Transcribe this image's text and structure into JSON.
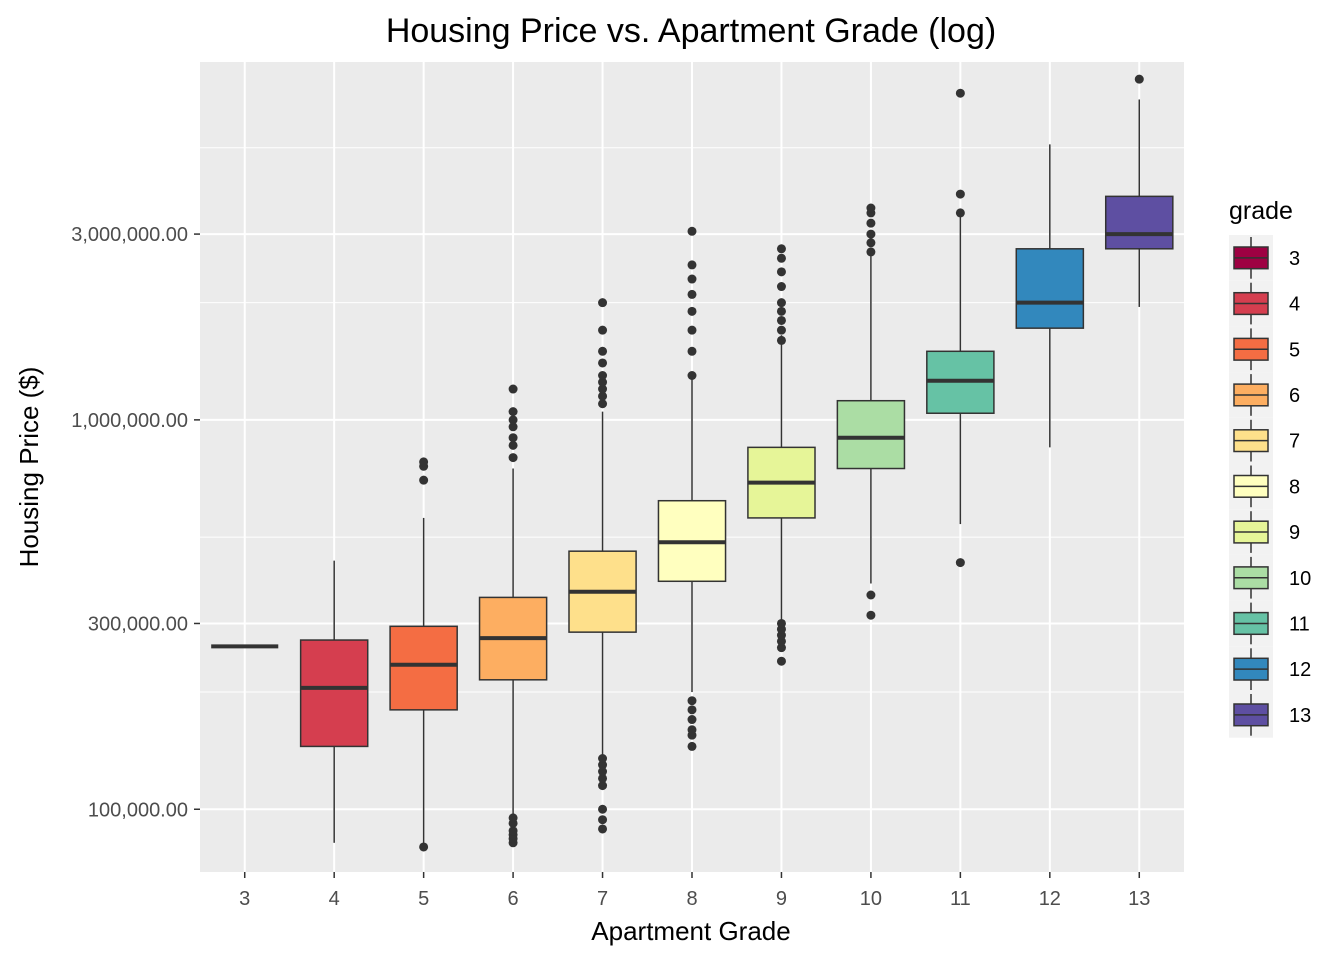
{
  "chart_data": {
    "type": "boxplot",
    "title": "Housing Price vs. Apartment Grade (log)",
    "xlabel": "Apartment Grade",
    "ylabel": "Housing Price ($)",
    "y_scale": "log10",
    "ylim": [
      69000,
      8300000
    ],
    "y_ticks": [
      {
        "value": 100000,
        "label": "100,000.00"
      },
      {
        "value": 300000,
        "label": "300,000.00"
      },
      {
        "value": 1000000,
        "label": "1,000,000.00"
      },
      {
        "value": 3000000,
        "label": "3,000,000.00"
      }
    ],
    "y_minor_ticks": [
      50000,
      200000,
      500000,
      2000000,
      5000000
    ],
    "categories": [
      "3",
      "4",
      "5",
      "6",
      "7",
      "8",
      "9",
      "10",
      "11",
      "12",
      "13"
    ],
    "grid": true,
    "legend": {
      "title": "grade",
      "position": "right"
    },
    "colors": [
      "#9E0142",
      "#D53E4F",
      "#F46D43",
      "#FDAE61",
      "#FEE08B",
      "#FFFFBF",
      "#E6F598",
      "#ABDDA4",
      "#66C2A5",
      "#3288BD",
      "#5E4FA2"
    ],
    "series": [
      {
        "grade": "3",
        "whisker_low": 262000,
        "q1": 262000,
        "median": 262000,
        "q3": 262000,
        "whisker_high": 262000,
        "outliers": []
      },
      {
        "grade": "4",
        "whisker_low": 82000,
        "q1": 145000,
        "median": 205000,
        "q3": 272000,
        "whisker_high": 435000,
        "outliers": []
      },
      {
        "grade": "5",
        "whisker_low": 80000,
        "q1": 180000,
        "median": 235000,
        "q3": 295000,
        "whisker_high": 560000,
        "outliers": [
          80000,
          700000,
          760000,
          780000
        ]
      },
      {
        "grade": "6",
        "whisker_low": 82000,
        "q1": 215000,
        "median": 275000,
        "q3": 350000,
        "whisker_high": 750000,
        "outliers": [
          82000,
          84000,
          86000,
          88000,
          92000,
          95000,
          800000,
          860000,
          900000,
          960000,
          1000000,
          1050000,
          1200000
        ]
      },
      {
        "grade": "7",
        "whisker_low": 130000,
        "q1": 285000,
        "median": 362000,
        "q3": 460000,
        "whisker_high": 1050000,
        "outliers": [
          89000,
          94000,
          100000,
          115000,
          120000,
          125000,
          130000,
          135000,
          1100000,
          1150000,
          1200000,
          1250000,
          1300000,
          1400000,
          1500000,
          1700000,
          2000000
        ]
      },
      {
        "grade": "8",
        "whisker_low": 200000,
        "q1": 385000,
        "median": 485000,
        "q3": 620000,
        "whisker_high": 1300000,
        "outliers": [
          145000,
          155000,
          160000,
          170000,
          180000,
          190000,
          1300000,
          1500000,
          1700000,
          1900000,
          2100000,
          2300000,
          2500000,
          3050000
        ]
      },
      {
        "grade": "9",
        "whisker_low": 305000,
        "q1": 560000,
        "median": 690000,
        "q3": 850000,
        "whisker_high": 1650000,
        "outliers": [
          240000,
          260000,
          270000,
          280000,
          290000,
          300000,
          1600000,
          1700000,
          1800000,
          1900000,
          2000000,
          2200000,
          2400000,
          2600000,
          2750000
        ]
      },
      {
        "grade": "10",
        "whisker_low": 380000,
        "q1": 750000,
        "median": 900000,
        "q3": 1120000,
        "whisker_high": 2650000,
        "outliers": [
          315000,
          355000,
          2700000,
          2850000,
          3000000,
          3200000,
          3400000,
          3500000
        ]
      },
      {
        "grade": "11",
        "whisker_low": 540000,
        "q1": 1040000,
        "median": 1260000,
        "q3": 1500000,
        "whisker_high": 3350000,
        "outliers": [
          430000,
          3400000,
          3800000,
          6900000
        ]
      },
      {
        "grade": "12",
        "whisker_low": 850000,
        "q1": 1720000,
        "median": 2000000,
        "q3": 2750000,
        "whisker_high": 5100000,
        "outliers": []
      },
      {
        "grade": "13",
        "whisker_low": 1950000,
        "q1": 2750000,
        "median": 3000000,
        "q3": 3750000,
        "whisker_high": 6650000,
        "outliers": [
          7500000
        ]
      }
    ]
  }
}
